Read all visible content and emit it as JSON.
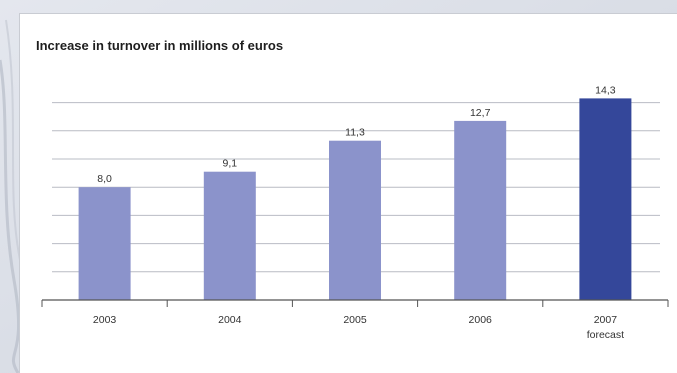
{
  "colors": {
    "bar": "#8b93cb",
    "bar_highlight": "#34479a",
    "grid": "#b9bcc4",
    "axis": "#555555"
  },
  "chart_data": {
    "type": "bar",
    "title": "Increase in turnover in millions of euros",
    "categories": [
      "2003",
      "2004",
      "2005",
      "2006",
      "2007"
    ],
    "category_sublabels": [
      "",
      "",
      "",
      "",
      "forecast"
    ],
    "values": [
      8.0,
      9.1,
      11.3,
      12.7,
      14.3
    ],
    "value_labels": [
      "8,0",
      "9,1",
      "11,3",
      "12,7",
      "14,3"
    ],
    "highlight_index": 4,
    "ylim": [
      0,
      15
    ],
    "grid": true,
    "xlabel": "",
    "ylabel": ""
  }
}
